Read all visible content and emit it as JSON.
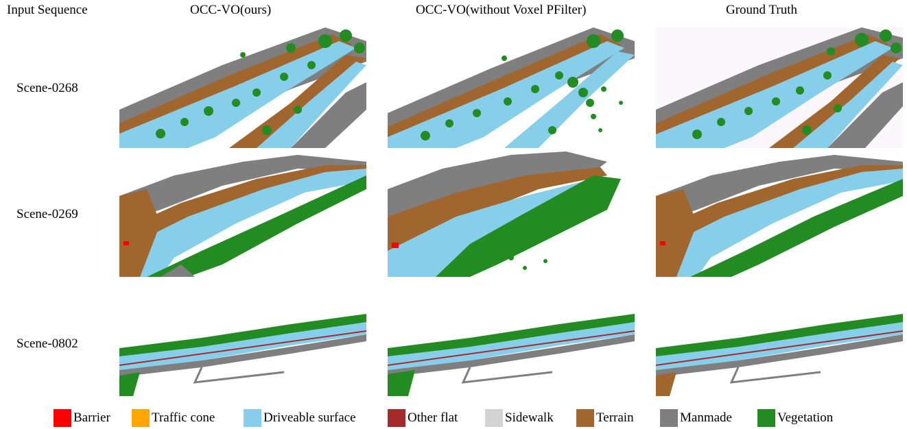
{
  "figure": {
    "column_headers": [
      "Input Sequence",
      "OCC-VO(ours)",
      "OCC-VO(without Voxel PFilter)",
      "Ground Truth"
    ],
    "row_labels": [
      "Scene-0268",
      "Scene-0269",
      "Scene-0802"
    ]
  },
  "legend": [
    {
      "label": "Barrier",
      "color": "#ff0000"
    },
    {
      "label": "Traffic cone",
      "color": "#ffa500"
    },
    {
      "label": "Driveable surface",
      "color": "#87ceea"
    },
    {
      "label": "Other flat",
      "color": "#a52a2a"
    },
    {
      "label": "Sidewalk",
      "color": "#d3d3d3"
    },
    {
      "label": "Terrain",
      "color": "#a0662e"
    },
    {
      "label": "Manmade",
      "color": "#7f7f7f"
    },
    {
      "label": "Vegetation",
      "color": "#228b22"
    }
  ]
}
